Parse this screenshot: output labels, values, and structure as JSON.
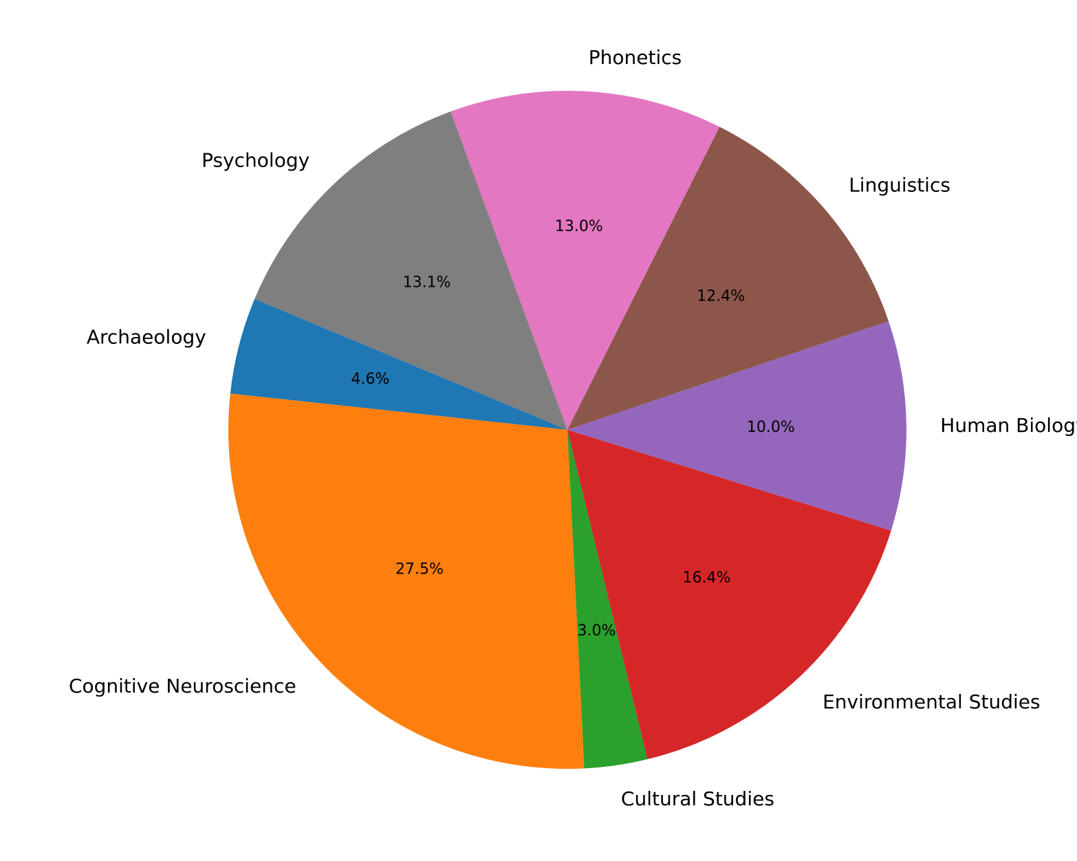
{
  "chart_data": {
    "type": "pie",
    "title": "",
    "categories": [
      "Archaeology",
      "Cognitive Neuroscience",
      "Cultural Studies",
      "Environmental Studies",
      "Human Biology",
      "Linguistics",
      "Phonetics",
      "Psychology"
    ],
    "values": [
      4.6,
      27.5,
      3.0,
      16.4,
      10.0,
      12.4,
      13.0,
      13.1
    ],
    "value_labels": [
      "4.6%",
      "27.5%",
      "3.0%",
      "16.4%",
      "10.0%",
      "12.4%",
      "13.0%",
      "13.1%"
    ],
    "colors": [
      "#1f77b4",
      "#ff7f0e",
      "#2ca02c",
      "#d62728",
      "#9467bd",
      "#8c564b",
      "#e377c2",
      "#7f7f7f"
    ],
    "start_angle_deg": 157.3,
    "direction": "counterclockwise"
  }
}
